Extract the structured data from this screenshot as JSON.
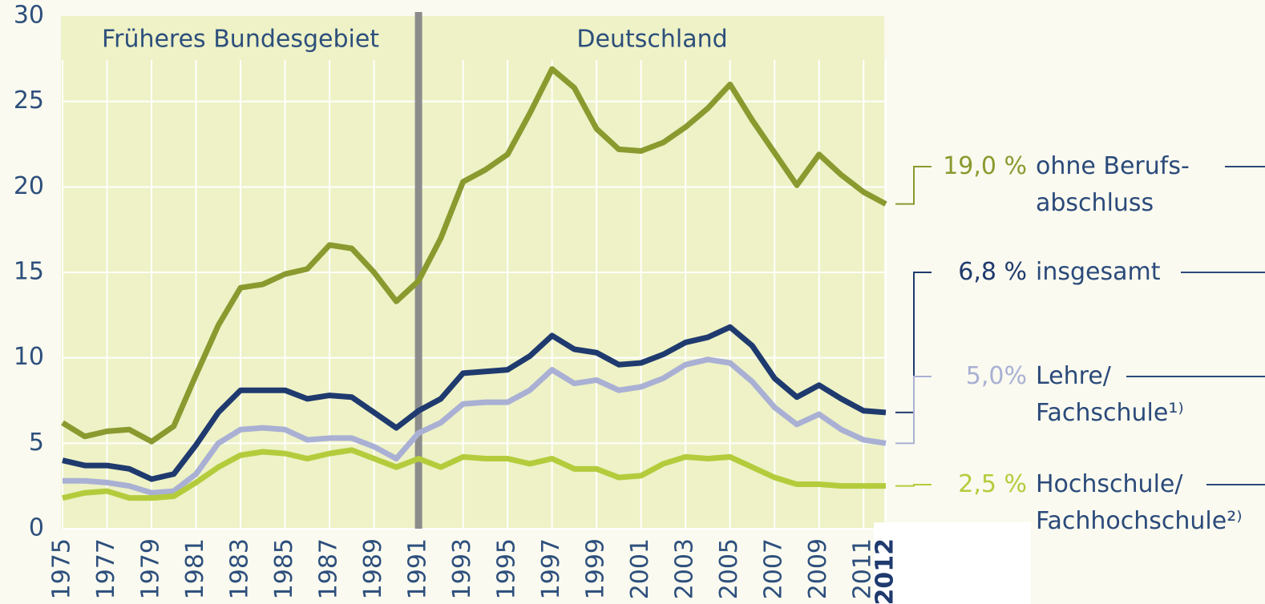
{
  "chart_data": {
    "type": "line",
    "annotations": [
      "Früheres Bundesgebiet",
      "Deutschland"
    ],
    "divider_x": 1991,
    "x": [
      1975,
      1976,
      1977,
      1978,
      1979,
      1980,
      1981,
      1982,
      1983,
      1984,
      1985,
      1986,
      1987,
      1988,
      1989,
      1990,
      1991,
      1992,
      1993,
      1994,
      1995,
      1996,
      1997,
      1998,
      1999,
      2000,
      2001,
      2002,
      2003,
      2004,
      2005,
      2006,
      2007,
      2008,
      2009,
      2010,
      2011,
      2012
    ],
    "xlim": [
      1975,
      2012
    ],
    "xticks": [
      1975,
      1977,
      1979,
      1981,
      1983,
      1985,
      1987,
      1989,
      1991,
      1993,
      1995,
      1997,
      1999,
      2001,
      2003,
      2005,
      2007,
      2009,
      2011,
      2012
    ],
    "ylim": [
      0,
      30
    ],
    "yticks": [
      0,
      5,
      10,
      15,
      20,
      25,
      30
    ],
    "grid": true,
    "series": [
      {
        "name": "ohne Berufs-\nabschluss",
        "color": "#8a9a2f",
        "end_label": "19,0 %",
        "values": [
          6.2,
          5.4,
          5.7,
          5.8,
          5.1,
          6.0,
          9.0,
          11.9,
          14.1,
          14.3,
          14.9,
          15.2,
          16.6,
          16.4,
          15.0,
          13.3,
          14.5,
          17.0,
          20.3,
          21.0,
          21.9,
          24.3,
          26.9,
          25.8,
          23.4,
          22.2,
          22.1,
          22.6,
          23.5,
          24.6,
          26.0,
          23.9,
          22.0,
          20.1,
          21.9,
          20.7,
          19.7,
          19.0
        ]
      },
      {
        "name": "insgesamt",
        "color": "#1f3a6e",
        "end_label": "6,8 %",
        "values": [
          4.0,
          3.7,
          3.7,
          3.5,
          2.9,
          3.2,
          4.9,
          6.8,
          8.1,
          8.1,
          8.1,
          7.6,
          7.8,
          7.7,
          6.8,
          5.9,
          6.9,
          7.6,
          9.1,
          9.2,
          9.3,
          10.1,
          11.3,
          10.5,
          10.3,
          9.6,
          9.7,
          10.2,
          10.9,
          11.2,
          11.8,
          10.7,
          8.8,
          7.7,
          8.4,
          7.6,
          6.9,
          6.8
        ]
      },
      {
        "name": "Lehre/\nFachschule¹⁾",
        "color": "#a9b0d4",
        "end_label": "5,0%",
        "values": [
          2.8,
          2.8,
          2.7,
          2.5,
          2.1,
          2.2,
          3.2,
          5.0,
          5.8,
          5.9,
          5.8,
          5.2,
          5.3,
          5.3,
          4.8,
          4.1,
          5.6,
          6.2,
          7.3,
          7.4,
          7.4,
          8.1,
          9.3,
          8.5,
          8.7,
          8.1,
          8.3,
          8.8,
          9.6,
          9.9,
          9.7,
          8.6,
          7.1,
          6.1,
          6.7,
          5.8,
          5.2,
          5.0
        ]
      },
      {
        "name": "Hochschule/\nFachhochschule²⁾",
        "color": "#b4cc3c",
        "end_label": "2,5 %",
        "values": [
          1.8,
          2.1,
          2.2,
          1.8,
          1.8,
          1.9,
          2.7,
          3.6,
          4.3,
          4.5,
          4.4,
          4.1,
          4.4,
          4.6,
          4.1,
          3.6,
          4.1,
          3.6,
          4.2,
          4.1,
          4.1,
          3.8,
          4.1,
          3.5,
          3.5,
          3.0,
          3.1,
          3.8,
          4.2,
          4.1,
          4.2,
          3.6,
          3.0,
          2.6,
          2.6,
          2.5,
          2.5,
          2.5
        ]
      }
    ]
  }
}
